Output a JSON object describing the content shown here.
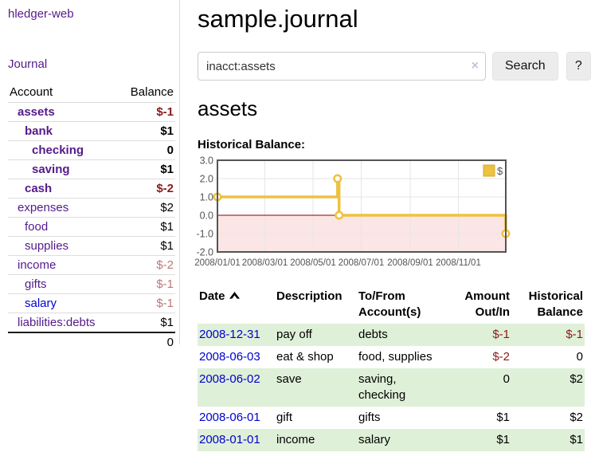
{
  "app": {
    "name": "hledger-web"
  },
  "header": {
    "title": "sample.journal"
  },
  "search": {
    "value": "inacct:assets",
    "clear_icon": "×",
    "button_label": "Search",
    "help_label": "?"
  },
  "sidebar": {
    "nav_journal": "Journal",
    "table": {
      "account_header": "Account",
      "balance_header": "Balance",
      "total": "0",
      "accounts": [
        {
          "name": "assets",
          "level": 1,
          "bold": true,
          "balance": "$-1"
        },
        {
          "name": "bank",
          "level": 2,
          "bold": true,
          "balance": "$1"
        },
        {
          "name": "checking",
          "level": 3,
          "bold": true,
          "balance": "0"
        },
        {
          "name": "saving",
          "level": 3,
          "bold": true,
          "balance": "$1"
        },
        {
          "name": "cash",
          "level": 2,
          "bold": true,
          "balance": "$-2"
        },
        {
          "name": "expenses",
          "level": 1,
          "bold": false,
          "balance": "$2"
        },
        {
          "name": "food",
          "level": 2,
          "bold": false,
          "balance": "$1"
        },
        {
          "name": "supplies",
          "level": 2,
          "bold": false,
          "balance": "$1"
        },
        {
          "name": "income",
          "level": 1,
          "bold": false,
          "balance": "$-2"
        },
        {
          "name": "gifts",
          "level": 2,
          "bold": false,
          "balance": "$-1"
        },
        {
          "name": "salary",
          "level": 2,
          "bold": false,
          "balance": "$-1",
          "unvisited": true
        },
        {
          "name": "liabilities:debts",
          "level": 1,
          "bold": false,
          "balance": "$1"
        }
      ]
    }
  },
  "account_page": {
    "heading": "assets",
    "chart_label": "Historical Balance:"
  },
  "chart_data": {
    "type": "line",
    "title": "Historical Balance:",
    "step": true,
    "series": [
      {
        "name": "$",
        "color": "#edc240",
        "points": [
          [
            "2008-01-01",
            1
          ],
          [
            "2008-06-01",
            2
          ],
          [
            "2008-06-03",
            0
          ],
          [
            "2008-12-31",
            -1
          ]
        ]
      }
    ],
    "x_range": [
      "2008-01-01",
      "2008-12-31"
    ],
    "x_ticks": [
      {
        "date": "2008-01-01",
        "label": "2008/01/01"
      },
      {
        "date": "2008-03-01",
        "label": "2008/03/01"
      },
      {
        "date": "2008-05-01",
        "label": "2008/05/01"
      },
      {
        "date": "2008-07-01",
        "label": "2008/07/01"
      },
      {
        "date": "2008-09-01",
        "label": "2008/09/01"
      },
      {
        "date": "2008-11-01",
        "label": "2008/11/01"
      }
    ],
    "y_ticks": [
      {
        "v": 3,
        "label": "3.0"
      },
      {
        "v": 2,
        "label": "2.0"
      },
      {
        "v": 1,
        "label": "1.0"
      },
      {
        "v": 0,
        "label": "0.0"
      },
      {
        "v": -1,
        "label": "-1.0"
      },
      {
        "v": -2,
        "label": "-2.0"
      }
    ],
    "ylim": [
      -2,
      3
    ],
    "grid": true,
    "legend": {
      "position": "top-right",
      "label": "$"
    },
    "negative_region_fill": "#fce5e5",
    "zero_line_color": "#8b0000",
    "grid_color": "#e6e6e6",
    "border_color": "#545454",
    "axis_text_color": "#545454"
  },
  "transactions": {
    "headers": [
      "Date",
      "Description",
      "To/From Account(s)",
      "Amount Out/In",
      "Historical Balance"
    ],
    "sort_icon": "chevron-up",
    "rows": [
      {
        "date": "2008-12-31",
        "description": "pay off",
        "accounts": [
          "debts"
        ],
        "amount": "$-1",
        "balance": "$-1"
      },
      {
        "date": "2008-06-03",
        "description": "eat & shop",
        "accounts": [
          "food, supplies"
        ],
        "amount": "$-2",
        "balance": "0"
      },
      {
        "date": "2008-06-02",
        "description": "save",
        "accounts": [
          "saving,",
          "checking"
        ],
        "amount": "0",
        "balance": "$2"
      },
      {
        "date": "2008-06-01",
        "description": "gift",
        "accounts": [
          "gifts"
        ],
        "amount": "$1",
        "balance": "$2"
      },
      {
        "date": "2008-01-01",
        "description": "income",
        "accounts": [
          "salary"
        ],
        "amount": "$1",
        "balance": "$1"
      }
    ]
  },
  "colors": {
    "link_purple": "#551a8b",
    "link_blue": "#0000dd",
    "date_link_blue": "#0000cc",
    "negative_bold_red": "#8b1a1a",
    "negative_light_red": "#bb7878",
    "row_green": "#dff0d8",
    "series_gold": "#edc240",
    "negative_region_pink": "#fce5e5",
    "zero_line_red": "#8b0000"
  }
}
